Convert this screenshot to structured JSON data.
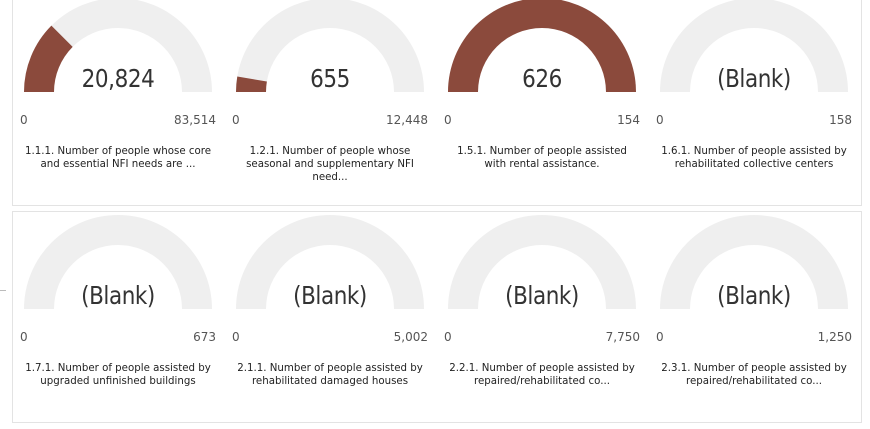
{
  "colors": {
    "fill": "#8b4a3c",
    "track": "#efefef"
  },
  "chart_data": [
    {
      "type": "gauge",
      "value": 20824,
      "value_label": "20,824",
      "min": 0,
      "max": 83514,
      "min_label": "0",
      "max_label": "83,514",
      "title": "1.1.1. Number of people whose core and essential NFI needs are ..."
    },
    {
      "type": "gauge",
      "value": 655,
      "value_label": "655",
      "min": 0,
      "max": 12448,
      "min_label": "0",
      "max_label": "12,448",
      "title": "1.2.1. Number of people whose seasonal and supplementary NFI need..."
    },
    {
      "type": "gauge",
      "value": 626,
      "value_label": "626",
      "min": 0,
      "max": 154,
      "min_label": "0",
      "max_label": "154",
      "title": "1.5.1. Number of people assisted with rental assistance."
    },
    {
      "type": "gauge",
      "value": null,
      "value_label": "(Blank)",
      "min": 0,
      "max": 158,
      "min_label": "0",
      "max_label": "158",
      "title": "1.6.1. Number of people assisted by rehabilitated collective centers"
    },
    {
      "type": "gauge",
      "value": null,
      "value_label": "(Blank)",
      "min": 0,
      "max": 673,
      "min_label": "0",
      "max_label": "673",
      "title": "1.7.1. Number of people assisted by upgraded unfinished buildings"
    },
    {
      "type": "gauge",
      "value": null,
      "value_label": "(Blank)",
      "min": 0,
      "max": 5002,
      "min_label": "0",
      "max_label": "5,002",
      "title": "2.1.1. Number of people assisted by rehabilitated damaged houses"
    },
    {
      "type": "gauge",
      "value": null,
      "value_label": "(Blank)",
      "min": 0,
      "max": 7750,
      "min_label": "0",
      "max_label": "7,750",
      "title": "2.2.1. Number of people assisted by repaired/rehabilitated co..."
    },
    {
      "type": "gauge",
      "value": null,
      "value_label": "(Blank)",
      "min": 0,
      "max": 1250,
      "min_label": "0",
      "max_label": "1,250",
      "title": "2.3.1. Number of people assisted by repaired/rehabilitated co..."
    }
  ]
}
